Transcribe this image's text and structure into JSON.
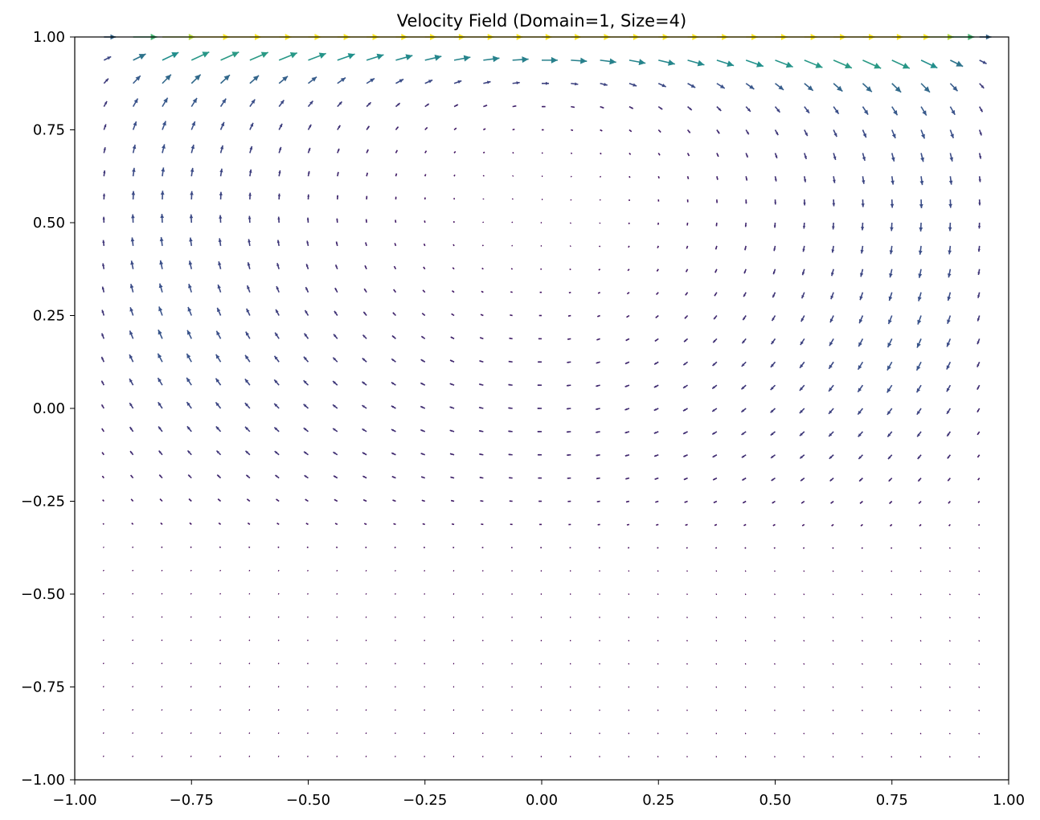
{
  "chart_data": {
    "type": "quiver",
    "title": "Velocity Field (Domain=1, Size=4)",
    "xlabel": "",
    "ylabel": "",
    "xlim": [
      -1.0,
      1.0
    ],
    "ylim": [
      -1.0,
      1.0
    ],
    "x_ticks": [
      -1.0,
      -0.75,
      -0.5,
      -0.25,
      0.0,
      0.25,
      0.5,
      0.75,
      1.0
    ],
    "x_tick_labels": [
      "−1.00",
      "−0.75",
      "−0.50",
      "−0.25",
      "0.00",
      "0.25",
      "0.50",
      "0.75",
      "1.00"
    ],
    "y_ticks": [
      -1.0,
      -0.75,
      -0.5,
      -0.25,
      0.0,
      0.25,
      0.5,
      0.75,
      1.0
    ],
    "y_tick_labels": [
      "−1.00",
      "−0.75",
      "−0.50",
      "−0.25",
      "0.00",
      "0.25",
      "0.50",
      "0.75",
      "1.00"
    ],
    "grid": false,
    "colormap": "viridis",
    "grid_points": {
      "x_start": -0.9375,
      "x_step": 0.0625,
      "x_count": 31,
      "y_start": -0.9375,
      "y_step": 0.0625,
      "y_count": 32
    },
    "flow": "lid-driven cavity: rightward lid at y = 1.00, primary clockwise vortex centered near (0.0, 0.55)",
    "vortex_center": [
      0.0,
      0.55
    ],
    "max_speed": 0.95
  }
}
